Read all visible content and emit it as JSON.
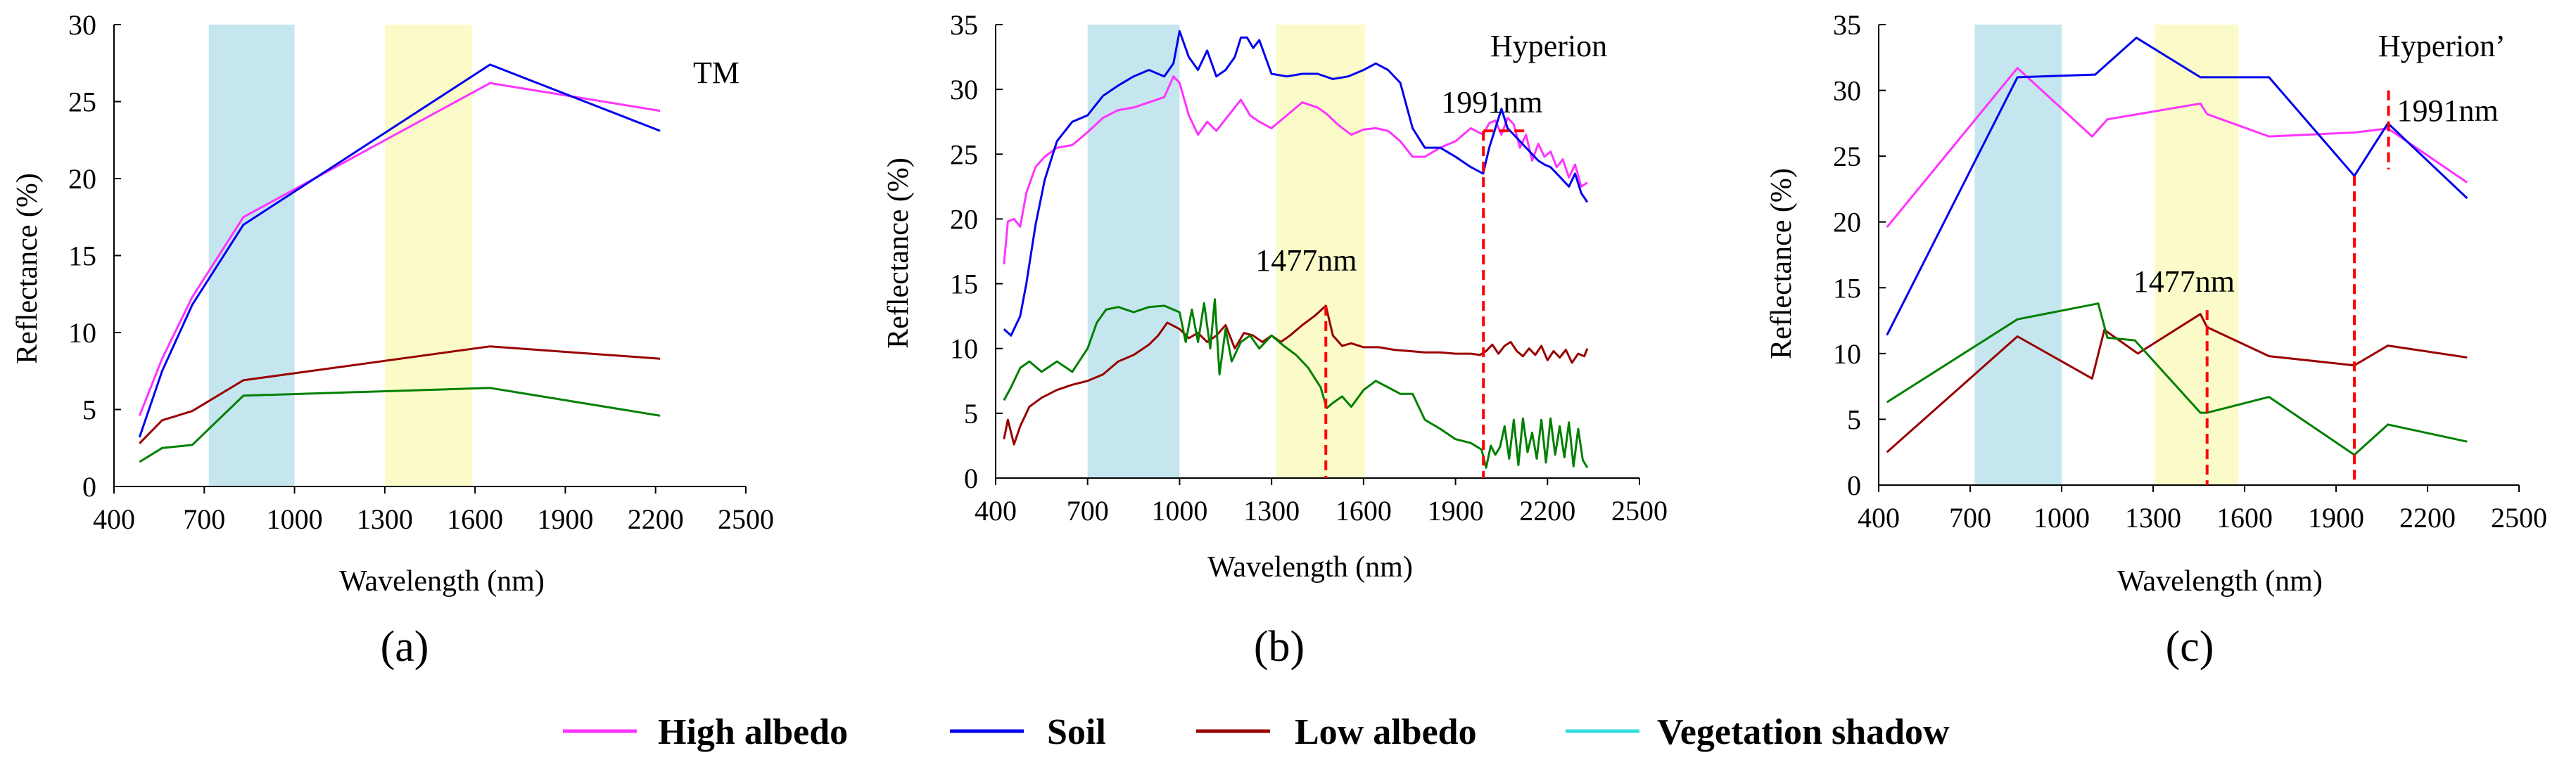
{
  "colors": {
    "high_albedo": "#ff33ff",
    "soil": "#0000ee",
    "low_albedo": "#990000",
    "vegetation_shadow": "#33dddd",
    "veg_curve": "#008000",
    "nir_band": "#bfe3ec",
    "swir_band": "#fbfbc4",
    "marker": "#ff0000"
  },
  "legend": [
    {
      "label": "High albedo",
      "color_key": "high_albedo"
    },
    {
      "label": "Soil",
      "color_key": "soil"
    },
    {
      "label": "Low albedo",
      "color_key": "low_albedo"
    },
    {
      "label": "Vegetation shadow",
      "color_key": "vegetation_shadow"
    }
  ],
  "chart_data": [
    {
      "type": "line",
      "panel_label": "(a)",
      "corner_label": "TM",
      "xlabel": "Wavelength (nm)",
      "ylabel": "Reflectance (%)",
      "xlim": [
        400,
        2500
      ],
      "ylim": [
        0,
        30
      ],
      "xticks": [
        400,
        700,
        1000,
        1300,
        1600,
        1900,
        2200,
        2500
      ],
      "yticks": [
        0,
        5,
        10,
        15,
        20,
        25,
        30
      ],
      "shaded_bands": [
        {
          "from": 715,
          "to": 1000,
          "color_key": "nir_band"
        },
        {
          "from": 1300,
          "to": 1590,
          "color_key": "swir_band"
        }
      ],
      "series": [
        {
          "name": "High albedo",
          "color_key": "high_albedo",
          "x": [
            485,
            560,
            660,
            830,
            1650,
            2215
          ],
          "y": [
            4.6,
            8.3,
            12.3,
            17.5,
            26.2,
            24.4
          ]
        },
        {
          "name": "Soil",
          "color_key": "soil",
          "x": [
            485,
            560,
            660,
            830,
            1650,
            2215
          ],
          "y": [
            3.2,
            7.5,
            11.8,
            17.0,
            27.4,
            23.1
          ]
        },
        {
          "name": "Low albedo",
          "color_key": "low_albedo",
          "x": [
            485,
            560,
            660,
            830,
            1650,
            2215
          ],
          "y": [
            2.8,
            4.3,
            4.9,
            6.9,
            9.1,
            8.3
          ]
        },
        {
          "name": "Vegetation shadow",
          "color_key": "veg_curve",
          "x": [
            485,
            560,
            660,
            830,
            1650,
            2215
          ],
          "y": [
            1.6,
            2.5,
            2.7,
            5.9,
            6.4,
            4.6
          ]
        }
      ],
      "markers": []
    },
    {
      "type": "line",
      "panel_label": "(b)",
      "corner_label": "Hyperion",
      "xlabel": "Wavelength (nm)",
      "ylabel": "Reflectance (%)",
      "xlim": [
        400,
        2500
      ],
      "ylim": [
        0,
        35
      ],
      "xticks": [
        400,
        700,
        1000,
        1300,
        1600,
        1900,
        2200,
        2500
      ],
      "yticks": [
        0,
        5,
        10,
        15,
        20,
        25,
        30,
        35
      ],
      "shaded_bands": [
        {
          "from": 700,
          "to": 1000,
          "color_key": "nir_band"
        },
        {
          "from": 1315,
          "to": 1605,
          "color_key": "swir_band"
        }
      ],
      "series": [
        {
          "name": "High albedo",
          "color_key": "high_albedo",
          "x": [
            427,
            440,
            460,
            480,
            500,
            530,
            560,
            600,
            650,
            700,
            750,
            800,
            850,
            900,
            950,
            980,
            1000,
            1030,
            1060,
            1090,
            1120,
            1160,
            1200,
            1230,
            1260,
            1300,
            1350,
            1400,
            1450,
            1480,
            1520,
            1560,
            1600,
            1640,
            1680,
            1720,
            1760,
            1800,
            1850,
            1900,
            1950,
            1990,
            2010,
            2030,
            2050,
            2070,
            2090,
            2110,
            2130,
            2150,
            2170,
            2190,
            2210,
            2230,
            2250,
            2270,
            2290,
            2310,
            2330
          ],
          "y": [
            16.5,
            19.8,
            20.0,
            19.4,
            22.0,
            24.0,
            24.8,
            25.5,
            25.7,
            26.7,
            27.8,
            28.4,
            28.6,
            29.0,
            29.4,
            31.0,
            30.5,
            28.0,
            26.5,
            27.5,
            26.8,
            28.0,
            29.2,
            28.0,
            27.5,
            27.0,
            28.0,
            29.0,
            28.6,
            28.1,
            27.2,
            26.5,
            26.9,
            27.0,
            26.8,
            26.0,
            24.8,
            24.8,
            25.5,
            26.0,
            27.0,
            26.5,
            27.4,
            27.6,
            26.5,
            27.8,
            27.3,
            25.5,
            26.5,
            24.5,
            25.8,
            24.8,
            25.2,
            24.0,
            24.6,
            23.2,
            24.2,
            22.5,
            22.8
          ]
        },
        {
          "name": "Soil",
          "color_key": "soil",
          "x": [
            427,
            450,
            480,
            500,
            530,
            560,
            600,
            650,
            700,
            750,
            800,
            850,
            900,
            950,
            980,
            1000,
            1030,
            1060,
            1090,
            1120,
            1150,
            1180,
            1200,
            1220,
            1240,
            1260,
            1300,
            1350,
            1400,
            1450,
            1500,
            1550,
            1600,
            1640,
            1680,
            1720,
            1760,
            1800,
            1850,
            1900,
            1950,
            1990,
            2010,
            2030,
            2050,
            2070,
            2090,
            2110,
            2130,
            2150,
            2170,
            2190,
            2210,
            2230,
            2250,
            2270,
            2290,
            2310,
            2330
          ],
          "y": [
            11.5,
            11.0,
            12.5,
            15.0,
            19.5,
            23.0,
            26.0,
            27.5,
            28.0,
            29.5,
            30.3,
            31.0,
            31.5,
            31.0,
            32.0,
            34.5,
            32.5,
            31.5,
            33.0,
            31.0,
            31.5,
            32.5,
            34.0,
            34.0,
            33.2,
            33.8,
            31.2,
            31.0,
            31.2,
            31.2,
            30.8,
            31.0,
            31.5,
            32.0,
            31.5,
            30.5,
            27.0,
            25.5,
            25.5,
            24.8,
            24.0,
            23.5,
            25.5,
            27.0,
            28.5,
            27.0,
            26.5,
            26.0,
            25.5,
            25.0,
            24.5,
            24.2,
            24.0,
            23.5,
            23.0,
            22.5,
            23.5,
            22.0,
            21.3
          ]
        },
        {
          "name": "Low albedo",
          "color_key": "low_albedo",
          "x": [
            427,
            440,
            460,
            480,
            510,
            550,
            600,
            650,
            700,
            750,
            800,
            850,
            900,
            930,
            960,
            1000,
            1030,
            1060,
            1090,
            1120,
            1150,
            1180,
            1210,
            1240,
            1270,
            1300,
            1330,
            1360,
            1400,
            1440,
            1477,
            1500,
            1530,
            1560,
            1600,
            1650,
            1700,
            1750,
            1800,
            1850,
            1900,
            1950,
            1980,
            2000,
            2020,
            2040,
            2060,
            2080,
            2100,
            2120,
            2140,
            2160,
            2180,
            2200,
            2220,
            2240,
            2260,
            2280,
            2300,
            2320,
            2330
          ],
          "y": [
            3.0,
            4.5,
            2.6,
            4.0,
            5.5,
            6.2,
            6.8,
            7.2,
            7.5,
            8.0,
            9.0,
            9.5,
            10.3,
            11.0,
            12.0,
            11.5,
            10.8,
            11.2,
            10.5,
            11.0,
            11.8,
            10.0,
            11.2,
            11.0,
            10.5,
            11.0,
            10.5,
            11.0,
            11.8,
            12.5,
            13.3,
            11.0,
            10.2,
            10.4,
            10.1,
            10.1,
            9.9,
            9.8,
            9.7,
            9.7,
            9.6,
            9.6,
            9.5,
            9.8,
            10.3,
            9.6,
            10.2,
            10.5,
            9.8,
            9.4,
            10.0,
            9.5,
            10.2,
            9.1,
            9.8,
            9.3,
            9.9,
            8.9,
            9.6,
            9.4,
            10.0
          ]
        },
        {
          "name": "Vegetation shadow",
          "color_key": "veg_curve",
          "x": [
            427,
            450,
            480,
            510,
            550,
            600,
            650,
            700,
            730,
            760,
            800,
            850,
            900,
            950,
            1000,
            1020,
            1040,
            1060,
            1080,
            1100,
            1115,
            1130,
            1150,
            1170,
            1200,
            1230,
            1260,
            1300,
            1340,
            1380,
            1420,
            1460,
            1480,
            1500,
            1530,
            1560,
            1600,
            1640,
            1680,
            1720,
            1760,
            1800,
            1850,
            1900,
            1950,
            1985,
            2000,
            2015,
            2030,
            2045,
            2060,
            2075,
            2090,
            2105,
            2120,
            2135,
            2150,
            2165,
            2180,
            2195,
            2210,
            2225,
            2240,
            2255,
            2270,
            2285,
            2300,
            2315,
            2330
          ],
          "y": [
            6.0,
            7.0,
            8.5,
            9.0,
            8.2,
            9.0,
            8.2,
            10.0,
            12.0,
            13.0,
            13.2,
            12.8,
            13.2,
            13.3,
            12.8,
            10.5,
            13.0,
            10.5,
            13.5,
            10.0,
            13.8,
            8.0,
            11.5,
            9.0,
            10.5,
            11.0,
            10.0,
            11.0,
            10.2,
            9.5,
            8.5,
            7.0,
            5.4,
            5.8,
            6.3,
            5.5,
            6.8,
            7.5,
            7.0,
            6.5,
            6.5,
            4.5,
            3.8,
            3.0,
            2.7,
            2.2,
            0.8,
            2.5,
            1.8,
            2.4,
            4.0,
            1.5,
            4.5,
            1.0,
            4.6,
            2.0,
            3.5,
            1.5,
            4.5,
            1.2,
            4.6,
            1.8,
            4.0,
            1.6,
            4.3,
            0.9,
            3.8,
            1.4,
            0.8
          ]
        }
      ],
      "markers": [
        {
          "x": 1477,
          "y_top": 13.3,
          "label": "1477nm"
        },
        {
          "x": 1991,
          "y_top": 26.8,
          "label": "1991nm"
        }
      ]
    },
    {
      "type": "line",
      "panel_label": "(c)",
      "corner_label": "Hyperion’",
      "xlabel": "Wavelength (nm)",
      "ylabel": "Reflectance (%)",
      "xlim": [
        400,
        2500
      ],
      "ylim": [
        0,
        35
      ],
      "xticks": [
        400,
        700,
        1000,
        1300,
        1600,
        1900,
        2200,
        2500
      ],
      "yticks": [
        0,
        5,
        10,
        15,
        20,
        25,
        30,
        35
      ],
      "shaded_bands": [
        {
          "from": 715,
          "to": 1000,
          "color_key": "nir_band"
        },
        {
          "from": 1305,
          "to": 1580,
          "color_key": "swir_band"
        }
      ],
      "series": [
        {
          "name": "High albedo",
          "color_key": "high_albedo",
          "x": [
            427,
            855,
            1100,
            1150,
            1455,
            1477,
            1680,
            1960,
            2070,
            2330
          ],
          "y": [
            19.6,
            31.7,
            26.5,
            27.8,
            29.0,
            28.2,
            26.5,
            26.8,
            27.1,
            23.0
          ]
        },
        {
          "name": "Soil",
          "color_key": "soil",
          "x": [
            427,
            855,
            1110,
            1245,
            1455,
            1477,
            1680,
            1960,
            2070,
            2330
          ],
          "y": [
            11.4,
            31.0,
            31.2,
            34.0,
            31.0,
            31.0,
            31.0,
            23.5,
            27.5,
            21.8
          ]
        },
        {
          "name": "Low albedo",
          "color_key": "low_albedo",
          "x": [
            427,
            855,
            1100,
            1140,
            1250,
            1455,
            1477,
            1680,
            1960,
            2070,
            2330
          ],
          "y": [
            2.5,
            11.3,
            8.1,
            11.8,
            10.0,
            13.0,
            12.0,
            9.8,
            9.1,
            10.6,
            9.7
          ]
        },
        {
          "name": "Vegetation shadow",
          "color_key": "veg_curve",
          "x": [
            427,
            855,
            1120,
            1150,
            1240,
            1455,
            1477,
            1680,
            1960,
            2070,
            2330
          ],
          "y": [
            6.3,
            12.6,
            13.8,
            11.2,
            11.0,
            5.5,
            5.5,
            6.7,
            2.3,
            4.6,
            3.3
          ]
        }
      ],
      "markers": [
        {
          "x": 1477,
          "y_top": 13.3,
          "label": "1477nm"
        },
        {
          "x": 1960,
          "y_top": 23.5,
          "label": ""
        },
        {
          "x": 2072,
          "y_top": 30.0,
          "y_bottom": 24.0,
          "label": "1991nm"
        }
      ]
    }
  ]
}
